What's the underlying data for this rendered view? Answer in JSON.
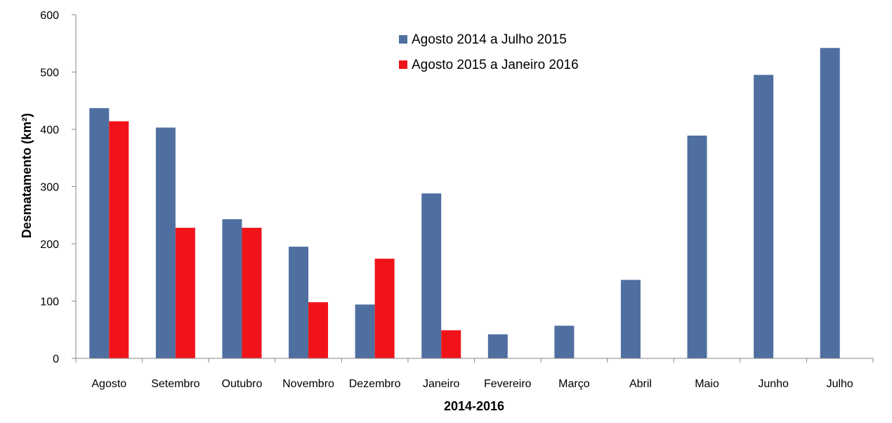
{
  "chart_data": {
    "type": "bar",
    "title": "",
    "xlabel": "2014-2016",
    "ylabel": "Desmatamento (km²)",
    "ylim": [
      0,
      600
    ],
    "yticks": [
      "0",
      "100",
      "200",
      "300",
      "400",
      "500",
      "600"
    ],
    "grid": false,
    "legend_position": "top-center",
    "categories": [
      "Agosto",
      "Setembro",
      "Outubro",
      "Novembro",
      "Dezembro",
      "Janeiro",
      "Fevereiro",
      "Março",
      "Abril",
      "Maio",
      "Junho",
      "Julho"
    ],
    "series": [
      {
        "name": "Agosto 2014 a Julho 2015",
        "color": "#4f6fa0",
        "values": [
          437,
          403,
          243,
          195,
          94,
          288,
          42,
          57,
          137,
          389,
          495,
          542
        ]
      },
      {
        "name": "Agosto 2015 a Janeiro 2016",
        "color": "#f0141a",
        "values": [
          414,
          228,
          228,
          98,
          174,
          49,
          null,
          null,
          null,
          null,
          null,
          null
        ]
      }
    ]
  }
}
